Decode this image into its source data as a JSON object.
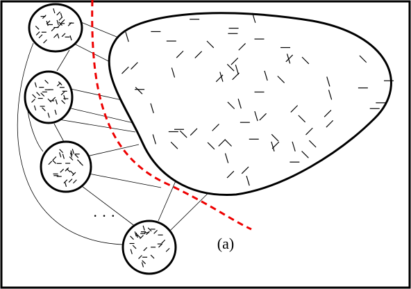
{
  "label": "(a)",
  "ellipsis": "· · ·"
}
